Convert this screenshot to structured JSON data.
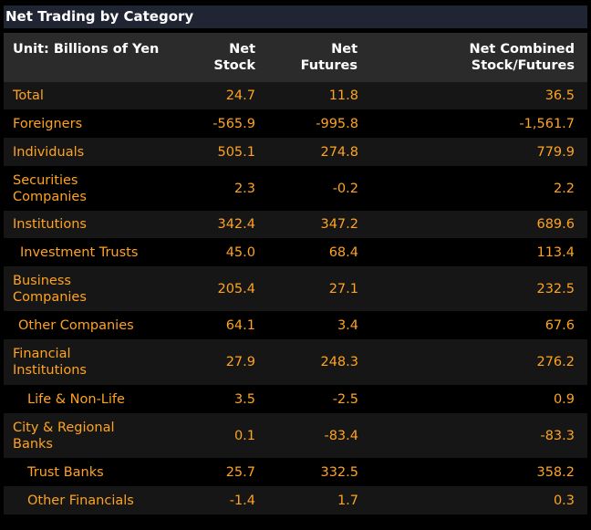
{
  "title": "Net Trading by Category",
  "header": {
    "unit_label": "Unit: Billions of Yen",
    "col_net_stock": "Net Stock",
    "col_net_futures": "Net Futures",
    "col_net_combined": "Net Combined Stock/Futures"
  },
  "rows": [
    {
      "label": "Total",
      "stock": "24.7",
      "futures": "11.8",
      "combined": "36.5"
    },
    {
      "label": "Foreigners",
      "stock": "-565.9",
      "futures": "-995.8",
      "combined": "-1,561.7"
    },
    {
      "label": "Individuals",
      "stock": "505.1",
      "futures": "274.8",
      "combined": "779.9"
    },
    {
      "label": "Securities Companies",
      "stock": "2.3",
      "futures": "-0.2",
      "combined": "2.2"
    },
    {
      "label": "Institutions",
      "stock": "342.4",
      "futures": "347.2",
      "combined": "689.6"
    },
    {
      "label": "Investment Trusts",
      "stock": "45.0",
      "futures": "68.4",
      "combined": "113.4"
    },
    {
      "label": "Business Companies",
      "stock": "205.4",
      "futures": "27.1",
      "combined": "232.5"
    },
    {
      "label": "Other Companies",
      "stock": "64.1",
      "futures": "3.4",
      "combined": "67.6"
    },
    {
      "label": "Financial Institutions",
      "stock": "27.9",
      "futures": "248.3",
      "combined": "276.2"
    },
    {
      "label": "Life & Non-Life",
      "stock": "3.5",
      "futures": "-2.5",
      "combined": "0.9"
    },
    {
      "label": "City & Regional Banks",
      "stock": "0.1",
      "futures": "-83.4",
      "combined": "-83.3"
    },
    {
      "label": "Trust Banks",
      "stock": "25.7",
      "futures": "332.5",
      "combined": "358.2"
    },
    {
      "label": "Other Financials",
      "stock": "-1.4",
      "futures": "1.7",
      "combined": "0.3"
    }
  ],
  "colors": {
    "value_text": "#ffa320",
    "header_text": "#ffffff",
    "title_bar": "#1f2533",
    "header_bg": "#2b2b2b",
    "row_alt_bg": "#161616",
    "background": "#000000"
  }
}
